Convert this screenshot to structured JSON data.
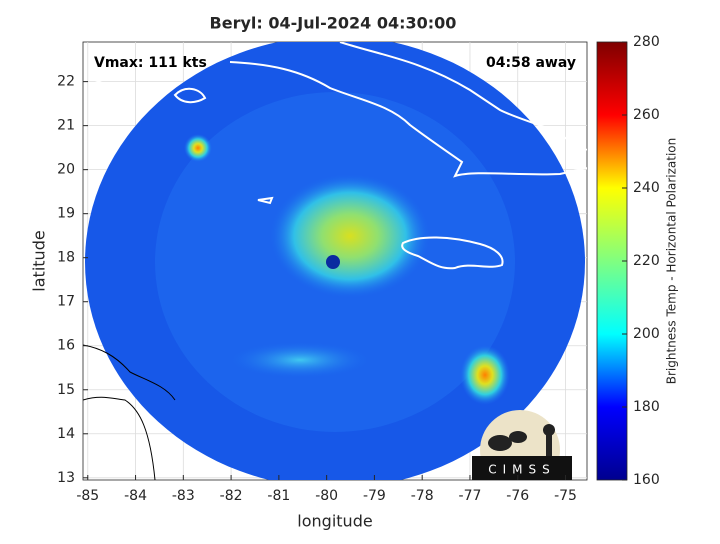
{
  "chart_data": {
    "type": "map",
    "title": "Beryl: 04-Jul-2024 04:30:00",
    "xlabel": "longitude",
    "ylabel": "latitude",
    "annotations": [
      "Vmax: 111 kts",
      "04:58 away"
    ],
    "logo": "CIMSS",
    "xlim": [
      -85.1,
      -74.55
    ],
    "xticks": [
      -85,
      -84,
      -83,
      -82,
      -81,
      -80,
      -79,
      -78,
      -77,
      -76,
      -75
    ],
    "ylim": [
      12.95,
      22.9
    ],
    "yticks": [
      13,
      14,
      15,
      16,
      17,
      18,
      19,
      20,
      21,
      22
    ],
    "grid": true,
    "colorbar": {
      "label": "Brightness Temp - Horizontal Polarization",
      "colormap": "jet",
      "lim": [
        160,
        280
      ],
      "ticks": [
        160,
        180,
        200,
        220,
        240,
        260,
        280
      ]
    }
  }
}
